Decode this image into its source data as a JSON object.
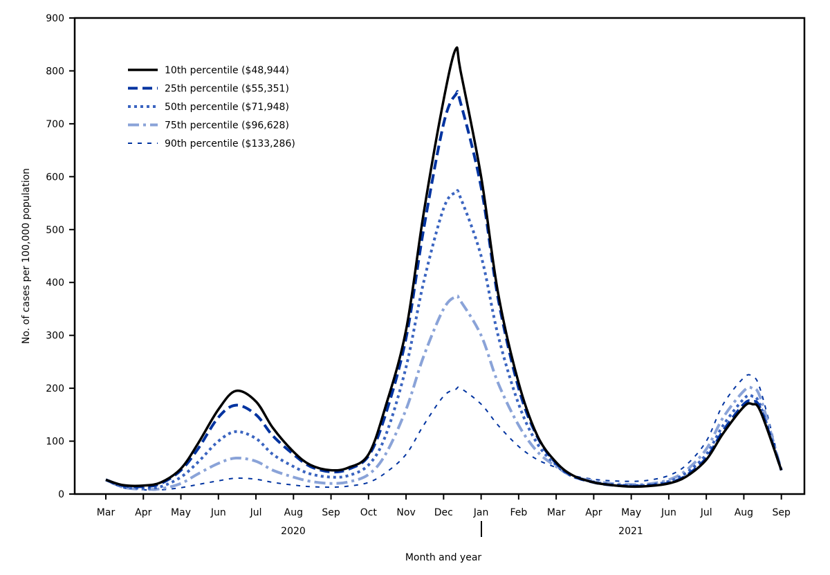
{
  "chart_data": {
    "type": "line",
    "title": "",
    "xlabel": "Month and year",
    "ylabel": "No. of cases per 100,000 population",
    "ylim": [
      0,
      900
    ],
    "yticks": [
      "0",
      "100",
      "200",
      "300",
      "400",
      "500",
      "600",
      "700",
      "800",
      "900"
    ],
    "xtick_labels": [
      "Mar",
      "Apr",
      "May",
      "Jun",
      "Jul",
      "Aug",
      "Sep",
      "Oct",
      "Nov",
      "Dec",
      "Jan",
      "Feb",
      "Mar",
      "Apr",
      "May",
      "Jun",
      "Jul",
      "Aug",
      "Sep"
    ],
    "xtick_dates": [
      "2020-03-01",
      "2020-04-01",
      "2020-05-01",
      "2020-06-01",
      "2020-07-01",
      "2020-08-01",
      "2020-09-01",
      "2020-10-01",
      "2020-11-01",
      "2020-12-01",
      "2021-01-01",
      "2021-02-01",
      "2021-03-01",
      "2021-04-01",
      "2021-05-01",
      "2021-06-01",
      "2021-07-01",
      "2021-08-01",
      "2021-09-01"
    ],
    "year_labels": [
      "2020",
      "2021"
    ],
    "grid": false,
    "legend_position": "top-left",
    "x": [
      "2020-03-01",
      "2020-03-15",
      "2020-04-01",
      "2020-04-15",
      "2020-05-01",
      "2020-05-15",
      "2020-06-01",
      "2020-06-15",
      "2020-07-01",
      "2020-07-15",
      "2020-08-01",
      "2020-08-15",
      "2020-09-01",
      "2020-09-15",
      "2020-10-01",
      "2020-10-15",
      "2020-11-01",
      "2020-11-15",
      "2020-12-01",
      "2020-12-11",
      "2020-12-15",
      "2021-01-01",
      "2021-01-15",
      "2021-02-01",
      "2021-02-15",
      "2021-03-01",
      "2021-03-15",
      "2021-04-01",
      "2021-04-15",
      "2021-05-01",
      "2021-05-15",
      "2021-06-01",
      "2021-06-15",
      "2021-07-01",
      "2021-07-15",
      "2021-08-01",
      "2021-08-08",
      "2021-08-15",
      "2021-09-01"
    ],
    "series": [
      {
        "name": "10th percentile ($48,944)",
        "color": "#000000",
        "style": "solid",
        "values": [
          27,
          17,
          16,
          22,
          48,
          95,
          160,
          195,
          175,
          125,
          80,
          55,
          45,
          50,
          75,
          165,
          310,
          530,
          745,
          841,
          800,
          600,
          380,
          210,
          110,
          60,
          35,
          22,
          17,
          14,
          15,
          20,
          33,
          65,
          115,
          165,
          170,
          155,
          45
        ]
      },
      {
        "name": "25th percentile ($55,351)",
        "color": "#0033a0",
        "style": "dashed",
        "values": [
          27,
          16,
          14,
          20,
          45,
          85,
          145,
          168,
          150,
          110,
          75,
          52,
          42,
          47,
          72,
          150,
          295,
          500,
          700,
          755,
          740,
          580,
          370,
          200,
          108,
          58,
          34,
          22,
          17,
          15,
          16,
          21,
          35,
          68,
          120,
          170,
          175,
          160,
          45
        ]
      },
      {
        "name": "50th percentile ($71,948)",
        "color": "#3a64c0",
        "style": "dotted",
        "values": [
          27,
          14,
          11,
          14,
          32,
          60,
          100,
          118,
          105,
          75,
          52,
          38,
          32,
          35,
          55,
          110,
          240,
          400,
          540,
          570,
          560,
          450,
          300,
          170,
          95,
          55,
          33,
          23,
          18,
          16,
          17,
          24,
          40,
          75,
          130,
          180,
          185,
          165,
          45
        ]
      },
      {
        "name": "75th percentile ($96,628)",
        "color": "#8aa3d8",
        "style": "dash-dot",
        "values": [
          27,
          13,
          9,
          10,
          20,
          38,
          58,
          68,
          62,
          45,
          32,
          24,
          20,
          23,
          37,
          75,
          160,
          260,
          350,
          373,
          365,
          300,
          210,
          130,
          80,
          52,
          33,
          25,
          20,
          18,
          19,
          27,
          45,
          85,
          145,
          195,
          200,
          180,
          45
        ]
      },
      {
        "name": "90th percentile ($133,286)",
        "color": "#0033a0",
        "style": "short-dash",
        "values": [
          27,
          12,
          8,
          8,
          12,
          18,
          25,
          30,
          28,
          22,
          17,
          14,
          13,
          15,
          22,
          40,
          75,
          130,
          185,
          198,
          200,
          170,
          130,
          90,
          65,
          50,
          35,
          28,
          25,
          24,
          26,
          35,
          55,
          100,
          170,
          220,
          222,
          195,
          45
        ]
      }
    ]
  }
}
